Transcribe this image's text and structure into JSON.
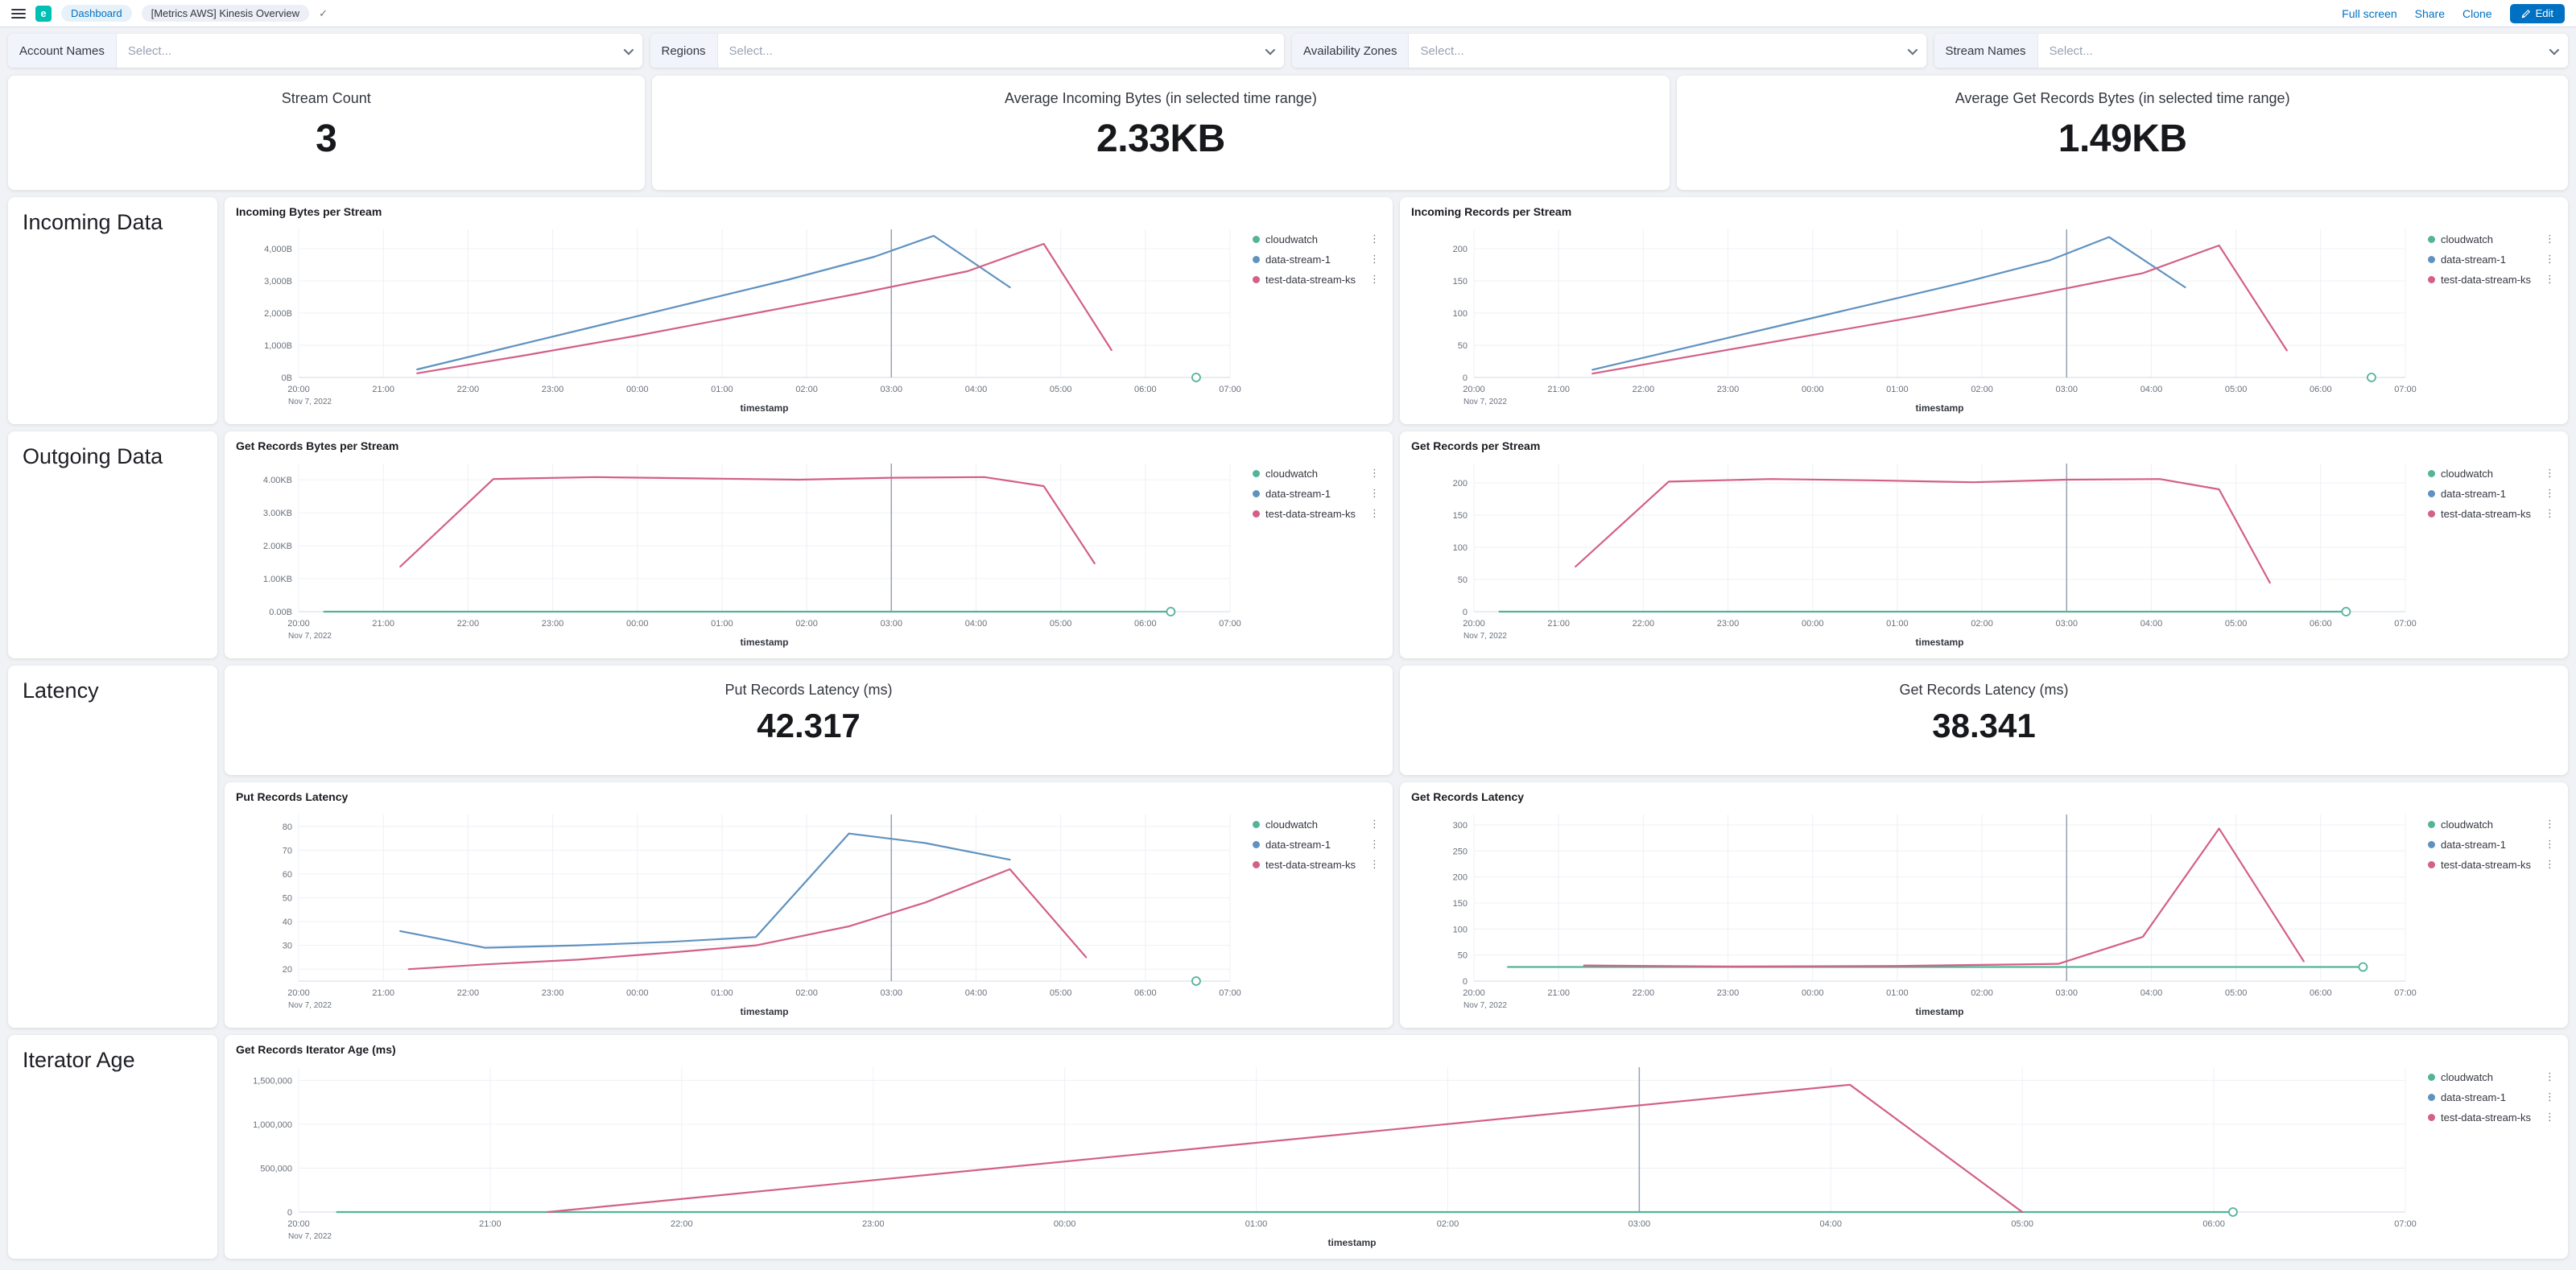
{
  "header": {
    "breadcrumb_dashboard": "Dashboard",
    "breadcrumb_page": "[Metrics AWS] Kinesis Overview",
    "actions": {
      "full_screen": "Full screen",
      "share": "Share",
      "clone": "Clone",
      "edit": "Edit"
    }
  },
  "filters": [
    {
      "label": "Account Names",
      "placeholder": "Select..."
    },
    {
      "label": "Regions",
      "placeholder": "Select..."
    },
    {
      "label": "Availability Zones",
      "placeholder": "Select..."
    },
    {
      "label": "Stream Names",
      "placeholder": "Select..."
    }
  ],
  "metrics": {
    "stream_count": {
      "title": "Stream Count",
      "value": "3"
    },
    "avg_incoming_bytes": {
      "title": "Average Incoming Bytes (in selected time range)",
      "value": "2.33KB"
    },
    "avg_get_records_bytes": {
      "title": "Average Get Records Bytes (in selected time range)",
      "value": "1.49KB"
    },
    "put_records_latency": {
      "title": "Put Records Latency (ms)",
      "value": "42.317"
    },
    "get_records_latency": {
      "title": "Get Records Latency (ms)",
      "value": "38.341"
    }
  },
  "sections": {
    "incoming": "Incoming Data",
    "outgoing": "Outgoing Data",
    "latency": "Latency",
    "iterator": "Iterator Age"
  },
  "legend": [
    {
      "label": "cloudwatch",
      "color": "#54B399"
    },
    {
      "label": "data-stream-1",
      "color": "#6092C0"
    },
    {
      "label": "test-data-stream-ks",
      "color": "#D36086"
    }
  ],
  "axis": {
    "xlabel": "timestamp",
    "date_label": "Nov 7, 2022",
    "xlim": [
      0,
      11
    ],
    "ticks": [
      "20:00",
      "21:00",
      "22:00",
      "23:00",
      "00:00",
      "01:00",
      "02:00",
      "03:00",
      "04:00",
      "05:00",
      "06:00",
      "07:00"
    ]
  },
  "chart_data": [
    {
      "type": "line",
      "title": "Incoming Bytes per Stream",
      "ylim": [
        0,
        4600
      ],
      "annotation_x": 7,
      "yticks": [
        {
          "v": 0,
          "label": "0B"
        },
        {
          "v": 1000,
          "label": "1,000B"
        },
        {
          "v": 2000,
          "label": "2,000B"
        },
        {
          "v": 3000,
          "label": "3,000B"
        },
        {
          "v": 4000,
          "label": "4,000B"
        }
      ],
      "series": [
        {
          "name": "cloudwatch",
          "color": "#54B399",
          "marker": "circle",
          "points": [
            [
              10.6,
              0
            ]
          ]
        },
        {
          "name": "data-stream-1",
          "color": "#6092C0",
          "points": [
            [
              1.4,
              250
            ],
            [
              2.5,
              950
            ],
            [
              3.6,
              1650
            ],
            [
              4.7,
              2350
            ],
            [
              5.8,
              3050
            ],
            [
              6.8,
              3750
            ],
            [
              7.5,
              4400
            ],
            [
              8.4,
              2800
            ]
          ]
        },
        {
          "name": "test-data-stream-ks",
          "color": "#D36086",
          "points": [
            [
              1.4,
              130
            ],
            [
              2.7,
              700
            ],
            [
              4.0,
              1300
            ],
            [
              5.3,
              1950
            ],
            [
              6.6,
              2600
            ],
            [
              7.9,
              3300
            ],
            [
              8.8,
              4150
            ],
            [
              9.6,
              850
            ]
          ]
        }
      ]
    },
    {
      "type": "line",
      "title": "Incoming Records per Stream",
      "ylim": [
        0,
        230
      ],
      "annotation_x": 7,
      "yticks": [
        {
          "v": 0,
          "label": "0"
        },
        {
          "v": 50,
          "label": "50"
        },
        {
          "v": 100,
          "label": "100"
        },
        {
          "v": 150,
          "label": "150"
        },
        {
          "v": 200,
          "label": "200"
        }
      ],
      "series": [
        {
          "name": "cloudwatch",
          "color": "#54B399",
          "marker": "circle",
          "points": [
            [
              10.6,
              0
            ]
          ]
        },
        {
          "name": "data-stream-1",
          "color": "#6092C0",
          "points": [
            [
              1.4,
              12
            ],
            [
              2.5,
              46
            ],
            [
              3.6,
              80
            ],
            [
              4.7,
              114
            ],
            [
              5.8,
              148
            ],
            [
              6.8,
              182
            ],
            [
              7.5,
              218
            ],
            [
              8.4,
              140
            ]
          ]
        },
        {
          "name": "test-data-stream-ks",
          "color": "#D36086",
          "points": [
            [
              1.4,
              6
            ],
            [
              2.7,
              36
            ],
            [
              4.0,
              66
            ],
            [
              5.3,
              96
            ],
            [
              6.6,
              128
            ],
            [
              7.9,
              162
            ],
            [
              8.8,
              205
            ],
            [
              9.6,
              42
            ]
          ]
        }
      ]
    },
    {
      "type": "line",
      "title": "Get Records Bytes per Stream",
      "ylim": [
        0,
        4600
      ],
      "annotation_x": 7,
      "yticks": [
        {
          "v": 0,
          "label": "0.00B"
        },
        {
          "v": 1024,
          "label": "1.00KB"
        },
        {
          "v": 2048,
          "label": "2.00KB"
        },
        {
          "v": 3072,
          "label": "3.00KB"
        },
        {
          "v": 4096,
          "label": "4.00KB"
        }
      ],
      "series": [
        {
          "name": "cloudwatch",
          "color": "#54B399",
          "marker": "circle",
          "points": [
            [
              0.3,
              0
            ],
            [
              10.3,
              0
            ]
          ]
        },
        {
          "name": "data-stream-1",
          "color": "#6092C0",
          "points": []
        },
        {
          "name": "test-data-stream-ks",
          "color": "#D36086",
          "points": [
            [
              1.2,
              1400
            ],
            [
              2.3,
              4120
            ],
            [
              3.5,
              4180
            ],
            [
              4.7,
              4140
            ],
            [
              5.9,
              4100
            ],
            [
              7.0,
              4160
            ],
            [
              8.1,
              4180
            ],
            [
              8.8,
              3900
            ],
            [
              9.4,
              1500
            ]
          ]
        }
      ]
    },
    {
      "type": "line",
      "title": "Get Records per Stream",
      "ylim": [
        0,
        230
      ],
      "annotation_x": 7,
      "yticks": [
        {
          "v": 0,
          "label": "0"
        },
        {
          "v": 50,
          "label": "50"
        },
        {
          "v": 100,
          "label": "100"
        },
        {
          "v": 150,
          "label": "150"
        },
        {
          "v": 200,
          "label": "200"
        }
      ],
      "series": [
        {
          "name": "cloudwatch",
          "color": "#54B399",
          "marker": "circle",
          "points": [
            [
              0.3,
              0
            ],
            [
              10.3,
              0
            ]
          ]
        },
        {
          "name": "data-stream-1",
          "color": "#6092C0",
          "points": []
        },
        {
          "name": "test-data-stream-ks",
          "color": "#D36086",
          "points": [
            [
              1.2,
              70
            ],
            [
              2.3,
              202
            ],
            [
              3.5,
              206
            ],
            [
              4.7,
              204
            ],
            [
              5.9,
              201
            ],
            [
              7.0,
              205
            ],
            [
              8.1,
              206
            ],
            [
              8.8,
              190
            ],
            [
              9.4,
              45
            ]
          ]
        }
      ]
    },
    {
      "type": "line",
      "title": "Put Records Latency",
      "ylim": [
        15,
        85
      ],
      "annotation_x": 7,
      "yticks": [
        {
          "v": 20,
          "label": "20"
        },
        {
          "v": 30,
          "label": "30"
        },
        {
          "v": 40,
          "label": "40"
        },
        {
          "v": 50,
          "label": "50"
        },
        {
          "v": 60,
          "label": "60"
        },
        {
          "v": 70,
          "label": "70"
        },
        {
          "v": 80,
          "label": "80"
        }
      ],
      "series": [
        {
          "name": "cloudwatch",
          "color": "#54B399",
          "marker": "circle",
          "points": [
            [
              10.6,
              15
            ]
          ]
        },
        {
          "name": "data-stream-1",
          "color": "#6092C0",
          "points": [
            [
              1.2,
              36
            ],
            [
              2.2,
              29
            ],
            [
              3.3,
              30
            ],
            [
              4.4,
              31.5
            ],
            [
              5.4,
              33.5
            ],
            [
              6.5,
              77
            ],
            [
              7.4,
              73
            ],
            [
              8.4,
              66
            ]
          ]
        },
        {
          "name": "test-data-stream-ks",
          "color": "#D36086",
          "points": [
            [
              1.3,
              20
            ],
            [
              2.2,
              22
            ],
            [
              3.3,
              24
            ],
            [
              4.4,
              27
            ],
            [
              5.4,
              30
            ],
            [
              6.5,
              38
            ],
            [
              7.4,
              48
            ],
            [
              8.4,
              62
            ],
            [
              9.3,
              25
            ]
          ]
        }
      ]
    },
    {
      "type": "line",
      "title": "Get Records Latency",
      "ylim": [
        0,
        320
      ],
      "annotation_x": 7,
      "yticks": [
        {
          "v": 0,
          "label": "0"
        },
        {
          "v": 50,
          "label": "50"
        },
        {
          "v": 100,
          "label": "100"
        },
        {
          "v": 150,
          "label": "150"
        },
        {
          "v": 200,
          "label": "200"
        },
        {
          "v": 250,
          "label": "250"
        },
        {
          "v": 300,
          "label": "300"
        }
      ],
      "series": [
        {
          "name": "cloudwatch",
          "color": "#54B399",
          "marker": "circle",
          "points": [
            [
              0.4,
              27
            ],
            [
              10.5,
              27
            ]
          ]
        },
        {
          "name": "data-stream-1",
          "color": "#6092C0",
          "points": []
        },
        {
          "name": "test-data-stream-ks",
          "color": "#D36086",
          "points": [
            [
              1.3,
              30
            ],
            [
              3.0,
              28
            ],
            [
              5.0,
              29
            ],
            [
              6.9,
              33
            ],
            [
              7.9,
              85
            ],
            [
              8.8,
              293
            ],
            [
              9.8,
              38
            ]
          ]
        }
      ]
    },
    {
      "type": "line",
      "title": "Get Records Iterator Age (ms)",
      "ylim": [
        0,
        1650000
      ],
      "annotation_x": 7,
      "yticks": [
        {
          "v": 0,
          "label": "0"
        },
        {
          "v": 500000,
          "label": "500,000"
        },
        {
          "v": 1000000,
          "label": "1,000,000"
        },
        {
          "v": 1500000,
          "label": "1,500,000"
        }
      ],
      "series": [
        {
          "name": "cloudwatch",
          "color": "#54B399",
          "marker": "circle",
          "points": [
            [
              0.2,
              0
            ],
            [
              10.1,
              0
            ]
          ]
        },
        {
          "name": "data-stream-1",
          "color": "#6092C0",
          "points": []
        },
        {
          "name": "test-data-stream-ks",
          "color": "#D36086",
          "points": [
            [
              1.3,
              0
            ],
            [
              8.1,
              1450000
            ],
            [
              9.0,
              0
            ]
          ]
        }
      ]
    }
  ]
}
